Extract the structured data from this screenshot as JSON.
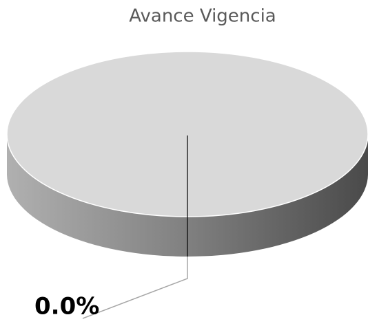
{
  "chart_data": {
    "type": "pie3d",
    "title": "Avance Vigencia",
    "categories": [
      null,
      null
    ],
    "values": [
      0,
      100
    ],
    "value_labels": [
      "0.0%",
      null
    ],
    "colors": [
      "#bfbfbf",
      "#d9d9d9"
    ]
  }
}
